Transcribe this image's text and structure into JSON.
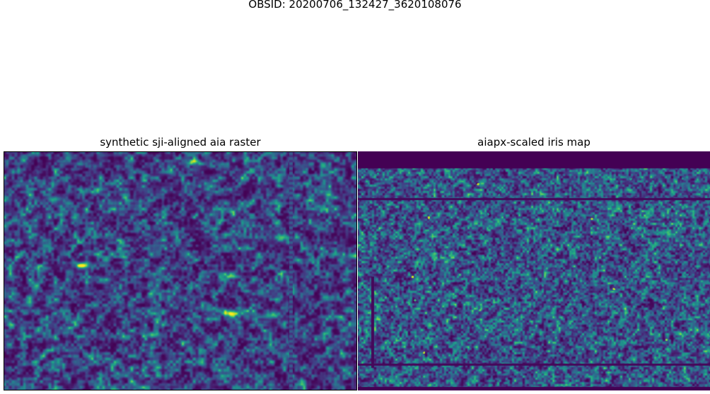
{
  "figure": {
    "suptitle": "OBSID: 20200706_132427_3620108076"
  },
  "chart_data": [
    {
      "type": "heatmap",
      "title": "synthetic sji-aligned aia raster",
      "colormap": "viridis",
      "axes_visible": false,
      "features": {
        "vertical_streak": true
      }
    },
    {
      "type": "heatmap",
      "title": "aiapx-scaled iris map",
      "colormap": "viridis",
      "axes_visible": false,
      "features": {
        "padding_bands": true
      }
    }
  ]
}
